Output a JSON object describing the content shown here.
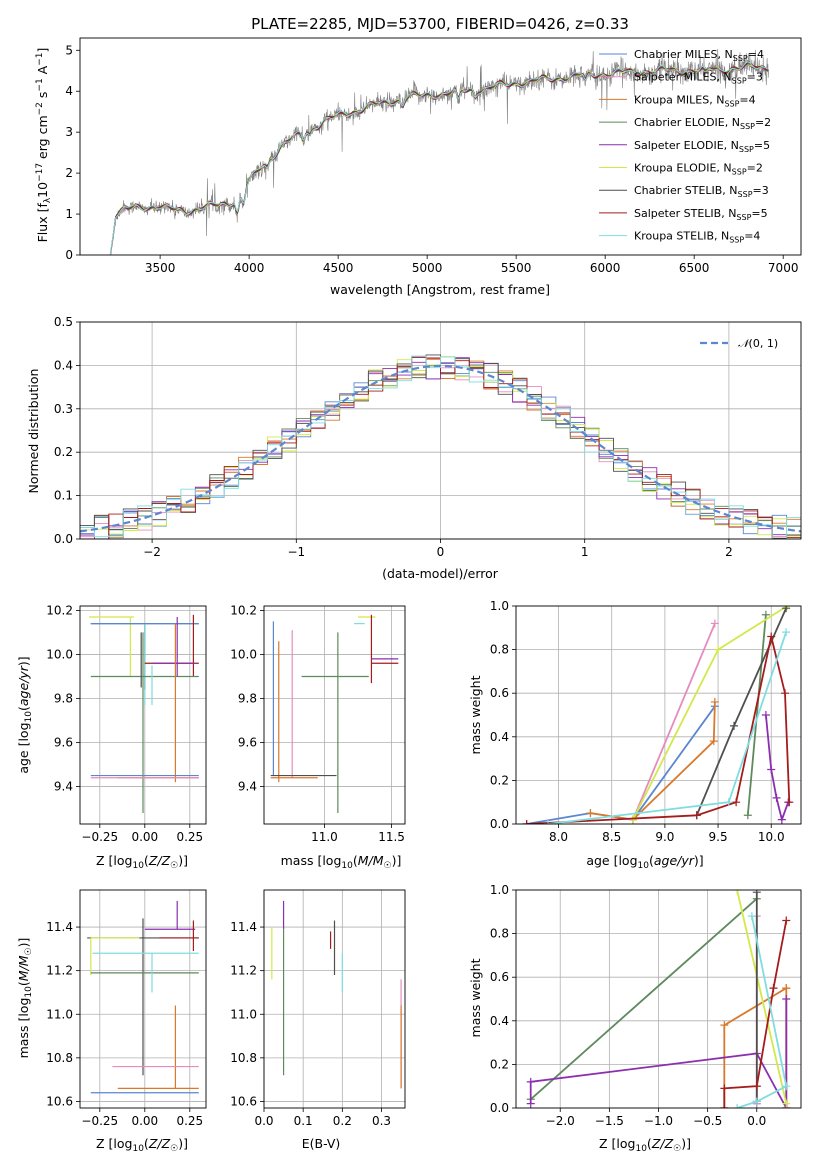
{
  "colors": {
    "chabrier_miles": "#5b86d0",
    "salpeter_miles": "#e58cbd",
    "kroupa_miles": "#d8792c",
    "chabrier_elodie": "#5e8a5e",
    "salpeter_elodie": "#8b2fb0",
    "kroupa_elodie": "#d3e84a",
    "chabrier_stelib": "#4f4f4f",
    "salpeter_stelib": "#a51c1c",
    "kroupa_stelib": "#7fdde0",
    "data": "#808080",
    "gauss": "#5b86d0"
  },
  "chart_data": [
    {
      "id": "spectrum",
      "type": "line",
      "title": "PLATE=2285, MJD=53700, FIBERID=0426, z=0.33",
      "xlabel": "wavelength [Angstrom, rest frame]",
      "ylabel": "Flux [f_λ 10^-17 erg cm^-2 s^-1 A^-1]",
      "xlim": [
        3050,
        7100
      ],
      "ylim": [
        0,
        5.3
      ],
      "xticks": [
        3500,
        4000,
        4500,
        5000,
        5500,
        6000,
        6500,
        7000
      ],
      "yticks": [
        0,
        1,
        2,
        3,
        4,
        5
      ],
      "grid": false,
      "legend_position": "top-right",
      "legend": [
        "Chabrier MILES, N_SSP=4",
        "Salpeter MILES, N_SSP=3",
        "Kroupa MILES, N_SSP=4",
        "Chabrier ELODIE, N_SSP=2",
        "Salpeter ELODIE, N_SSP=5",
        "Kroupa ELODIE, N_SSP=2",
        "Chabrier STELIB, N_SSP=3",
        "Salpeter STELIB, N_SSP=5",
        "Kroupa STELIB, N_SSP=4"
      ],
      "continuum": {
        "x": [
          3220,
          3250,
          3300,
          3400,
          3500,
          3600,
          3700,
          3800,
          3900,
          3950,
          4000,
          4100,
          4200,
          4300,
          4400,
          4500,
          4700,
          4900,
          5100,
          5300,
          5500,
          5700,
          5900,
          6100,
          6300,
          6500,
          6700,
          6900
        ],
        "y": [
          0.0,
          0.95,
          1.1,
          1.2,
          1.15,
          1.1,
          1.1,
          1.2,
          1.3,
          1.4,
          1.8,
          2.3,
          2.7,
          3.0,
          3.2,
          3.4,
          3.65,
          3.85,
          3.95,
          4.05,
          4.2,
          4.3,
          4.4,
          4.45,
          4.5,
          4.5,
          4.55,
          4.6
        ]
      }
    },
    {
      "id": "residuals",
      "type": "histogram",
      "xlabel": "(data-model)/error",
      "ylabel": "Normed distribution",
      "xlim": [
        -2.5,
        2.5
      ],
      "ylim": [
        0,
        0.5
      ],
      "xticks": [
        -2,
        -1,
        0,
        1,
        2
      ],
      "yticks": [
        0.0,
        0.1,
        0.2,
        0.3,
        0.4,
        0.5
      ],
      "grid": true,
      "legend_position": "top-right",
      "legend": [
        "N(0,1)"
      ],
      "bin_width": 0.1
    },
    {
      "id": "age-vs-z",
      "type": "scatter",
      "xlabel": "Z [log10(Z/Z☉)]",
      "ylabel": "age [log10(age/yr)]",
      "xlim": [
        -0.36,
        0.34
      ],
      "ylim": [
        9.23,
        10.22
      ],
      "xticks": [
        -0.25,
        0.0,
        0.25
      ],
      "yticks": [
        9.4,
        9.6,
        9.8,
        10.0,
        10.2
      ],
      "grid": true,
      "errorbars": [
        {
          "c": "kroupa_elodie",
          "x": -0.08,
          "xerr": [
            0.23,
            0.02
          ],
          "y": 10.17,
          "yerr": [
            0.27,
            0.0
          ]
        },
        {
          "c": "chabrier_stelib",
          "x": 0.0,
          "xerr": [
            0.3,
            0.3
          ],
          "y": 10.14,
          "yerr": [
            0.3,
            0.0
          ]
        },
        {
          "c": "kroupa_stelib",
          "x": 0.0,
          "xerr": [
            0.3,
            0.3
          ],
          "y": 10.14,
          "yerr": [
            0.37,
            0.0
          ]
        },
        {
          "c": "chabrier_miles",
          "x": 0.0,
          "xerr": [
            0.3,
            0.3
          ],
          "y": 10.14,
          "yerr": [
            0.0,
            0.0
          ]
        },
        {
          "c": "salpeter_stelib",
          "x": 0.27,
          "xerr": [
            0.27,
            0.03
          ],
          "y": 9.96,
          "yerr": [
            0.06,
            0.22
          ]
        },
        {
          "c": "salpeter_elodie",
          "x": 0.18,
          "xerr": [
            0.14,
            0.1
          ],
          "y": 9.96,
          "yerr": [
            0.0,
            0.0
          ]
        },
        {
          "c": "chabrier_elodie",
          "x": -0.01,
          "xerr": [
            0.29,
            0.31
          ],
          "y": 9.9,
          "yerr": [
            0.62,
            0.2
          ]
        },
        {
          "c": "salpeter_elodie",
          "x": 0.18,
          "xerr": [
            0.0,
            0.0
          ],
          "y": 10.05,
          "yerr": [
            0.15,
            0.12
          ]
        },
        {
          "c": "kroupa_stelib",
          "x": 0.04,
          "xerr": [
            0.0,
            0.0
          ],
          "y": 9.95,
          "yerr": [
            0.18,
            0.0
          ]
        },
        {
          "c": "kroupa_miles",
          "x": 0.17,
          "xerr": [
            0.32,
            0.13
          ],
          "y": 9.44,
          "yerr": [
            0.02,
            0.7
          ]
        },
        {
          "c": "chabrier_miles",
          "x": 0.0,
          "xerr": [
            0.3,
            0.3
          ],
          "y": 9.45,
          "yerr": [
            0.0,
            0.0
          ]
        },
        {
          "c": "salpeter_miles",
          "x": 0.0,
          "xerr": [
            0.3,
            0.3
          ],
          "y": 9.44,
          "yerr": [
            0.0,
            0.0
          ]
        },
        {
          "c": "chabrier_stelib",
          "x": -0.02,
          "xerr": [
            0.0,
            0.0
          ],
          "y": 9.85,
          "yerr": [
            0.0,
            0.25
          ]
        }
      ]
    },
    {
      "id": "age-vs-mass",
      "type": "scatter",
      "xlabel": "mass [log10(M/M☉)]",
      "ylabel": "",
      "xlim": [
        10.55,
        11.6
      ],
      "ylim": [
        9.23,
        10.22
      ],
      "xticks": [
        11.0,
        11.5
      ],
      "yticks": [
        9.4,
        9.6,
        9.8,
        10.0,
        10.2
      ],
      "grid": true,
      "errorbars": [
        {
          "c": "kroupa_elodie",
          "x": 11.38,
          "xerr": [
            0.13,
            0.0
          ],
          "y": 10.17,
          "yerr": [
            0.0,
            0.0
          ]
        },
        {
          "c": "kroupa_stelib",
          "x": 11.3,
          "xerr": [
            0.08,
            0.0
          ],
          "y": 10.14,
          "yerr": [
            0.0,
            0.0
          ]
        },
        {
          "c": "salpeter_stelib",
          "x": 11.35,
          "xerr": [
            0.0,
            0.0
          ],
          "y": 10.0,
          "yerr": [
            0.13,
            0.18
          ]
        },
        {
          "c": "salpeter_elodie",
          "x": 11.45,
          "xerr": [
            0.1,
            0.1
          ],
          "y": 9.98,
          "yerr": [
            0.0,
            0.0
          ]
        },
        {
          "c": "salpeter_stelib",
          "x": 11.45,
          "xerr": [
            0.1,
            0.1
          ],
          "y": 9.96,
          "yerr": [
            0.0,
            0.0
          ]
        },
        {
          "c": "chabrier_elodie",
          "x": 11.1,
          "xerr": [
            0.27,
            0.23
          ],
          "y": 9.9,
          "yerr": [
            0.62,
            0.2
          ]
        },
        {
          "c": "chabrier_miles",
          "x": 10.62,
          "xerr": [
            0.0,
            0.0
          ],
          "y": 9.45,
          "yerr": [
            0.0,
            0.7
          ]
        },
        {
          "c": "kroupa_miles",
          "x": 10.66,
          "xerr": [
            0.0,
            0.0
          ],
          "y": 9.44,
          "yerr": [
            0.02,
            0.62
          ]
        },
        {
          "c": "salpeter_miles",
          "x": 10.76,
          "xerr": [
            0.0,
            0.0
          ],
          "y": 9.44,
          "yerr": [
            0.0,
            0.67
          ]
        },
        {
          "c": "chabrier_stelib",
          "x": 10.6,
          "xerr": [
            0.0,
            0.49
          ],
          "y": 9.45,
          "yerr": [
            0.0,
            0.0
          ]
        },
        {
          "c": "kroupa_miles",
          "x": 10.6,
          "xerr": [
            0.0,
            0.35
          ],
          "y": 9.44,
          "yerr": [
            0.0,
            0.0
          ]
        }
      ]
    },
    {
      "id": "weight-vs-age",
      "type": "line",
      "xlabel": "age [log10(age/yr)]",
      "ylabel": "mass weight",
      "xlim": [
        7.6,
        10.28
      ],
      "ylim": [
        0,
        1.0
      ],
      "xticks": [
        8.0,
        8.5,
        9.0,
        9.5,
        10.0
      ],
      "yticks": [
        0.0,
        0.2,
        0.4,
        0.6,
        0.8,
        1.0
      ],
      "grid": true,
      "series": [
        {
          "c": "chabrier_miles",
          "x": [
            7.7,
            8.3,
            8.7,
            9.47
          ],
          "y": [
            0.0,
            0.05,
            0.02,
            0.54
          ]
        },
        {
          "c": "salpeter_miles",
          "x": [
            8.7,
            9.47
          ],
          "y": [
            0.02,
            0.92
          ]
        },
        {
          "c": "kroupa_miles",
          "x": [
            8.3,
            8.7,
            9.46,
            9.47
          ],
          "y": [
            0.05,
            0.02,
            0.38,
            0.56
          ]
        },
        {
          "c": "chabrier_elodie",
          "x": [
            9.78,
            9.95
          ],
          "y": [
            0.04,
            0.96
          ]
        },
        {
          "c": "salpeter_elodie",
          "x": [
            9.95,
            10.0,
            10.05,
            10.1,
            10.16
          ],
          "y": [
            0.5,
            0.25,
            0.12,
            0.02,
            0.1
          ]
        },
        {
          "c": "kroupa_elodie",
          "x": [
            8.7,
            9.5,
            10.15
          ],
          "y": [
            0.02,
            0.8,
            1.0
          ]
        },
        {
          "c": "chabrier_stelib",
          "x": [
            9.3,
            9.65,
            10.14
          ],
          "y": [
            0.04,
            0.45,
            0.99
          ]
        },
        {
          "c": "salpeter_stelib",
          "x": [
            7.7,
            9.3,
            9.67,
            10.0,
            10.13,
            10.17
          ],
          "y": [
            0.0,
            0.04,
            0.1,
            0.86,
            0.6,
            0.1
          ]
        },
        {
          "c": "kroupa_stelib",
          "x": [
            7.9,
            9.6,
            10.14
          ],
          "y": [
            0.0,
            0.1,
            0.88
          ]
        }
      ]
    },
    {
      "id": "mass-vs-z",
      "type": "scatter",
      "xlabel": "Z [log10(Z/Z☉)]",
      "ylabel": "mass [log10(M/M☉)]",
      "xlim": [
        -0.36,
        0.34
      ],
      "ylim": [
        10.57,
        11.57
      ],
      "xticks": [
        -0.25,
        0.0,
        0.25
      ],
      "yticks": [
        10.6,
        10.8,
        11.0,
        11.2,
        11.4
      ],
      "grid": true,
      "errorbars": [
        {
          "c": "chabrier_stelib",
          "x": -0.01,
          "xerr": [
            0.31,
            0.31
          ],
          "y": 11.35,
          "yerr": [
            0.63,
            0.09
          ]
        },
        {
          "c": "salpeter_elodie",
          "x": 0.18,
          "xerr": [
            0.18,
            0.1
          ],
          "y": 11.39,
          "yerr": [
            0.0,
            0.13
          ]
        },
        {
          "c": "salpeter_stelib",
          "x": 0.27,
          "xerr": [
            0.19,
            0.03
          ],
          "y": 11.35,
          "yerr": [
            0.06,
            0.08
          ]
        },
        {
          "c": "kroupa_elodie",
          "x": -0.3,
          "xerr": [
            0.0,
            0.27
          ],
          "y": 11.35,
          "yerr": [
            0.17,
            0.0
          ]
        },
        {
          "c": "chabrier_elodie",
          "x": -0.3,
          "xerr": [
            0.0,
            0.6
          ],
          "y": 11.19,
          "yerr": [
            0.0,
            0.0
          ]
        },
        {
          "c": "kroupa_stelib",
          "x": 0.04,
          "xerr": [
            0.33,
            0.26
          ],
          "y": 11.28,
          "yerr": [
            0.18,
            0.0
          ]
        },
        {
          "c": "kroupa_miles",
          "x": 0.17,
          "xerr": [
            0.32,
            0.13
          ],
          "y": 10.66,
          "yerr": [
            0.0,
            0.38
          ]
        },
        {
          "c": "salpeter_miles",
          "x": 0.0,
          "xerr": [
            0.18,
            0.3
          ],
          "y": 10.76,
          "yerr": [
            0.0,
            0.0
          ]
        },
        {
          "c": "chabrier_miles",
          "x": 0.0,
          "xerr": [
            0.3,
            0.3
          ],
          "y": 10.64,
          "yerr": [
            0.0,
            0.0
          ]
        }
      ]
    },
    {
      "id": "mass-vs-ebv",
      "type": "scatter",
      "xlabel": "E(B-V)",
      "ylabel": "",
      "xlim": [
        0.0,
        0.36
      ],
      "ylim": [
        10.57,
        11.57
      ],
      "xticks": [
        0.0,
        0.1,
        0.2,
        0.3
      ],
      "yticks": [
        10.6,
        10.8,
        11.0,
        11.2,
        11.4
      ],
      "grid": true,
      "errorbars": [
        {
          "c": "kroupa_elodie",
          "x": 0.02,
          "xerr": [
            0.0,
            0.0
          ],
          "y": 11.3,
          "yerr": [
            0.14,
            0.1
          ]
        },
        {
          "c": "chabrier_elodie",
          "x": 0.05,
          "xerr": [
            0.0,
            0.0
          ],
          "y": 11.19,
          "yerr": [
            0.47,
            0.2
          ]
        },
        {
          "c": "salpeter_elodie",
          "x": 0.05,
          "xerr": [
            0.0,
            0.0
          ],
          "y": 11.39,
          "yerr": [
            0.0,
            0.13
          ]
        },
        {
          "c": "salpeter_stelib",
          "x": 0.17,
          "xerr": [
            0.0,
            0.0
          ],
          "y": 11.38,
          "yerr": [
            0.08,
            0.0
          ]
        },
        {
          "c": "chabrier_stelib",
          "x": 0.18,
          "xerr": [
            0.0,
            0.0
          ],
          "y": 11.35,
          "yerr": [
            0.17,
            0.08
          ]
        },
        {
          "c": "kroupa_stelib",
          "x": 0.2,
          "xerr": [
            0.0,
            0.0
          ],
          "y": 11.28,
          "yerr": [
            0.18,
            0.0
          ]
        },
        {
          "c": "salpeter_elodie",
          "x": 0.19,
          "xerr": [
            0.0,
            0.0
          ],
          "y": 11.39,
          "yerr": [
            0.0,
            0.0
          ]
        },
        {
          "c": "salpeter_miles",
          "x": 0.35,
          "xerr": [
            0.0,
            0.0
          ],
          "y": 10.76,
          "yerr": [
            0.1,
            0.4
          ]
        },
        {
          "c": "kroupa_miles",
          "x": 0.35,
          "xerr": [
            0.0,
            0.0
          ],
          "y": 10.66,
          "yerr": [
            0.0,
            0.38
          ]
        }
      ]
    },
    {
      "id": "weight-vs-z",
      "type": "line",
      "xlabel": "Z [log10(Z/Z☉)]",
      "ylabel": "mass weight",
      "xlim": [
        -2.45,
        0.45
      ],
      "ylim": [
        0,
        1.0
      ],
      "xticks": [
        -2.0,
        -1.5,
        -1.0,
        -0.5,
        0.0
      ],
      "yticks": [
        0.0,
        0.2,
        0.4,
        0.6,
        0.8,
        1.0
      ],
      "grid": true,
      "series": [
        {
          "c": "chabrier_miles",
          "x": [
            0.0,
            0.0
          ],
          "y": [
            0.02,
            0.1
          ]
        },
        {
          "c": "salpeter_miles",
          "x": [
            0.0,
            0.0
          ],
          "y": [
            0.02,
            0.88
          ]
        },
        {
          "c": "kroupa_miles",
          "x": [
            -0.33,
            -0.33,
            0.3,
            0.3,
            0.3
          ],
          "y": [
            0.0,
            0.38,
            0.55,
            0.55,
            0.0
          ]
        },
        {
          "c": "chabrier_elodie",
          "x": [
            -2.3,
            0.0
          ],
          "y": [
            0.04,
            0.96
          ]
        },
        {
          "c": "salpeter_elodie",
          "x": [
            -2.3,
            -2.3,
            0.0,
            0.3,
            0.3
          ],
          "y": [
            0.02,
            0.12,
            0.25,
            0.0,
            0.5
          ]
        },
        {
          "c": "kroupa_elodie",
          "x": [
            -0.2,
            0.3
          ],
          "y": [
            1.0,
            0.02
          ]
        },
        {
          "c": "chabrier_stelib",
          "x": [
            0.0,
            0.0
          ],
          "y": [
            0.03,
            0.99
          ]
        },
        {
          "c": "salpeter_stelib",
          "x": [
            -0.33,
            -0.33,
            0.0,
            0.17,
            0.3
          ],
          "y": [
            0.0,
            0.09,
            0.1,
            0.55,
            0.86
          ]
        },
        {
          "c": "kroupa_stelib",
          "x": [
            -0.05,
            0.3,
            0.0,
            -0.2
          ],
          "y": [
            0.88,
            0.1,
            0.03,
            0.0
          ]
        }
      ]
    }
  ]
}
